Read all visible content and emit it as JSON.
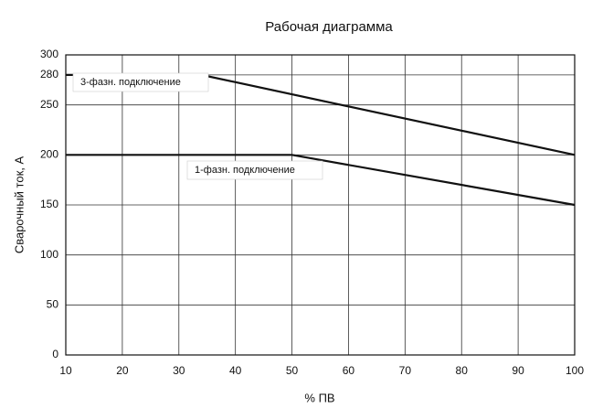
{
  "chart_data": {
    "type": "line",
    "title": "Рабочая диаграмма",
    "x_label": "% ПВ",
    "y_label": "Сварочный ток, А",
    "series": [
      {
        "name": "3-фазн. подключение",
        "color": "#111111",
        "x": [
          10,
          34,
          100
        ],
        "values": [
          280,
          280,
          200
        ]
      },
      {
        "name": "1-фазн. подключение",
        "color": "#111111",
        "x": [
          10,
          50,
          100
        ],
        "values": [
          200,
          200,
          150
        ]
      }
    ],
    "xlim": [
      10,
      100
    ],
    "xticks": [
      10,
      20,
      30,
      40,
      50,
      60,
      70,
      80,
      90,
      100
    ],
    "ylim": [
      0,
      300
    ],
    "yticks": [
      0,
      50,
      100,
      150,
      200,
      250,
      280,
      300
    ],
    "grid": true
  }
}
